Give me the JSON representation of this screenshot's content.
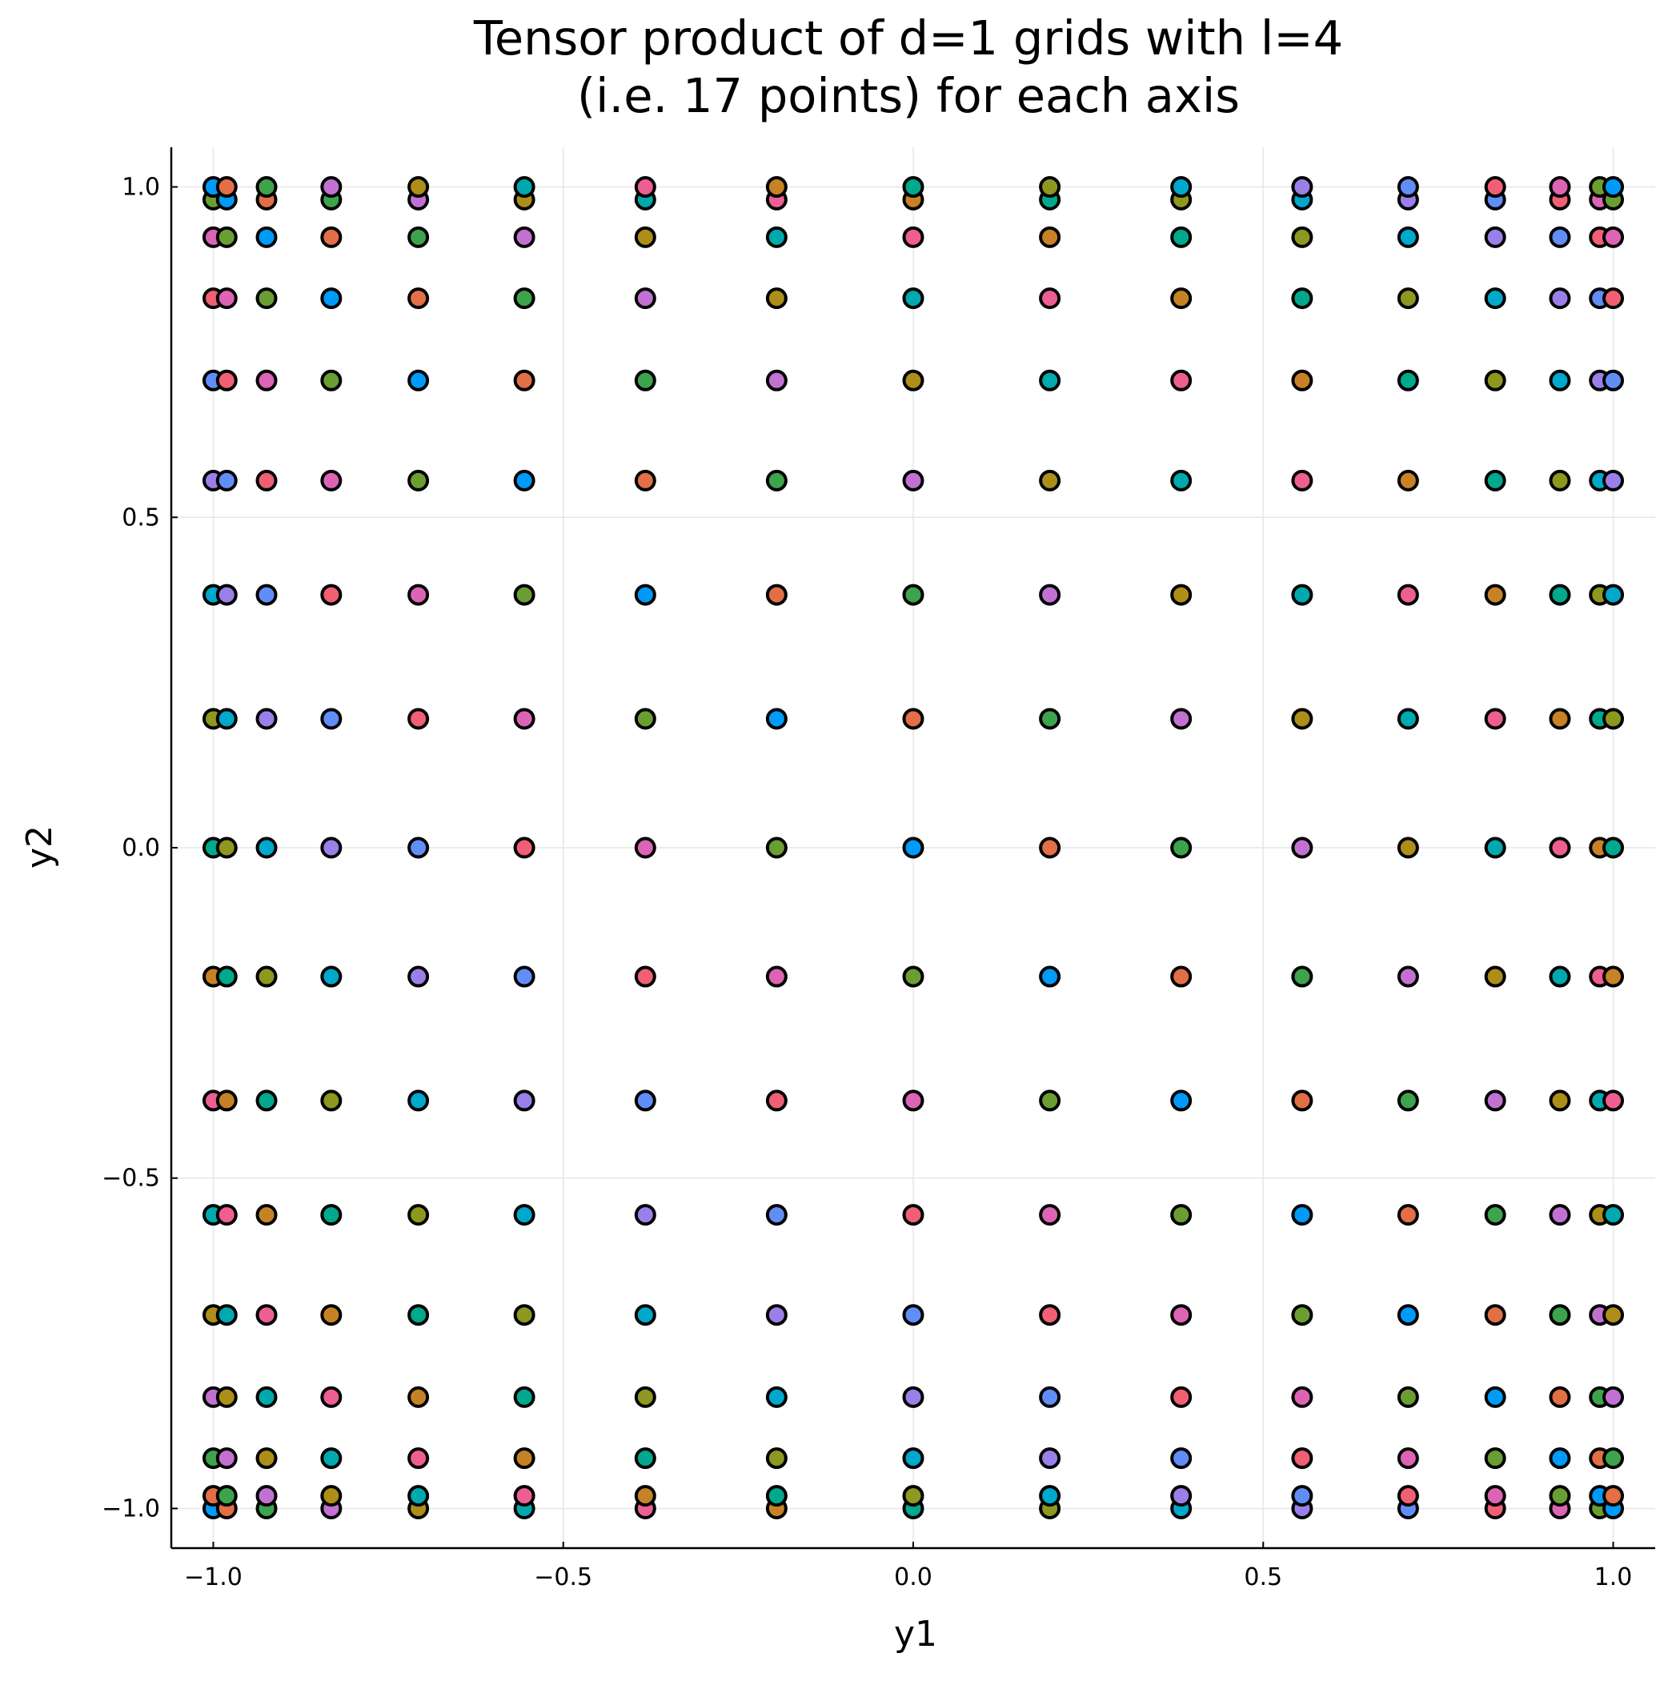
{
  "chart_data": {
    "type": "scatter",
    "title": [
      "Tensor product of d=1 grids with l=4",
      "(i.e. 17 points) for each axis"
    ],
    "xlabel": "y1",
    "ylabel": "y2",
    "xlim": [
      -1.06,
      1.06
    ],
    "ylim": [
      -1.06,
      1.06
    ],
    "xticks": [
      -1.0,
      -0.5,
      0.0,
      0.5,
      1.0
    ],
    "yticks": [
      -1.0,
      -0.5,
      0.0,
      0.5,
      1.0
    ],
    "xtick_labels": [
      "−1.0",
      "−0.5",
      "0.0",
      "0.5",
      "1.0"
    ],
    "ytick_labels": [
      "−1.0",
      "−0.5",
      "0.0",
      "0.5",
      "1.0"
    ],
    "grid": true,
    "legend": false,
    "grid_points": [
      -1.0,
      -0.9808,
      -0.9239,
      -0.8315,
      -0.7071,
      -0.5556,
      -0.3827,
      -0.1951,
      0.0,
      0.1951,
      0.3827,
      0.5556,
      0.7071,
      0.8315,
      0.9239,
      0.9808,
      1.0
    ],
    "marker_colors": [
      "#009af9",
      "#e26f46",
      "#3da44d",
      "#c271d2",
      "#ac8e18",
      "#00a9ad",
      "#ed5e93",
      "#c68225",
      "#00a98d",
      "#8e971e",
      "#00a8cb",
      "#9b7fe9",
      "#618df6",
      "#f05f73",
      "#dd64b5",
      "#6b9e32"
    ]
  }
}
